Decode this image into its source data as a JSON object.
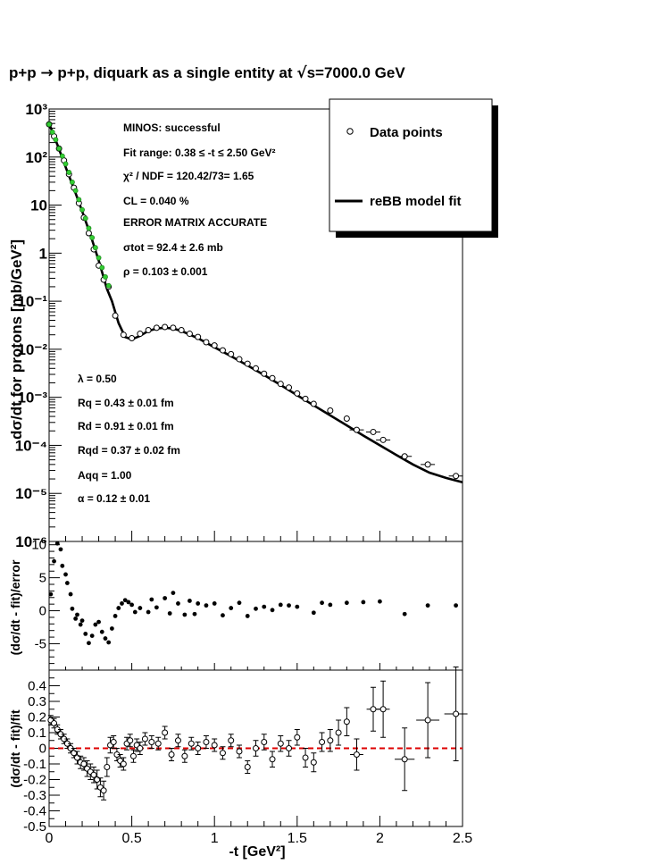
{
  "title": "p+p → p+p, diquark as a single entity at √s=7000.0 GeV",
  "title_parts": {
    "pre": "p+p ",
    "arrow": "→",
    "mid": " p+p, diquark as a single entity at ",
    "sqrt": "√",
    "post": "s=7000.0 GeV"
  },
  "colors": {
    "fit_points": "#33cc33",
    "zero_line": "#dd0000",
    "axes": "#000000"
  },
  "chart_data": [
    {
      "id": "main",
      "type": "scatter",
      "log_y": true,
      "xlim": [
        0,
        2.5
      ],
      "ylim": [
        1e-06,
        1000
      ],
      "ylabel": "dσ/dt for protons [mb/GeV²]",
      "y_tick_labels": [
        "10⁻⁶",
        "10⁻⁵",
        "10⁻⁴",
        "10⁻³",
        "10⁻²",
        "10⁻¹",
        "1",
        "10",
        "10²",
        "10³"
      ],
      "legend": {
        "position": "top-right",
        "entries": [
          "Data points",
          "reBB model fit"
        ]
      },
      "fit_info": [
        "MINOS: successful",
        "Fit range: 0.38 ≤ -t ≤ 2.50 GeV²",
        "χ² / NDF = 120.42/73= 1.65",
        "CL = 0.040 %",
        "ERROR MATRIX ACCURATE",
        "σtot = 92.4 ±  2.6 mb",
        "ρ = 0.103 ± 0.001"
      ],
      "params": [
        "λ = 0.50",
        "Rq = 0.43 ± 0.01 fm",
        "Rd = 0.91 ± 0.01 fm",
        "Rqd = 0.37 ± 0.02 fm",
        "Aqq = 1.00",
        "α = 0.12 ± 0.01"
      ],
      "fit_curve": [
        [
          0.0,
          500
        ],
        [
          0.05,
          180
        ],
        [
          0.1,
          62
        ],
        [
          0.15,
          22
        ],
        [
          0.2,
          7.5
        ],
        [
          0.25,
          2.4
        ],
        [
          0.3,
          0.7
        ],
        [
          0.35,
          0.18
        ],
        [
          0.38,
          0.1
        ],
        [
          0.42,
          0.035
        ],
        [
          0.46,
          0.018
        ],
        [
          0.5,
          0.016
        ],
        [
          0.55,
          0.019
        ],
        [
          0.6,
          0.024
        ],
        [
          0.65,
          0.027
        ],
        [
          0.7,
          0.028
        ],
        [
          0.75,
          0.027
        ],
        [
          0.8,
          0.024
        ],
        [
          0.9,
          0.017
        ],
        [
          1.0,
          0.011
        ],
        [
          1.1,
          0.0072
        ],
        [
          1.2,
          0.0046
        ],
        [
          1.3,
          0.0029
        ],
        [
          1.4,
          0.0018
        ],
        [
          1.5,
          0.0011
        ],
        [
          1.6,
          0.00068
        ],
        [
          1.7,
          0.00042
        ],
        [
          1.8,
          0.00026
        ],
        [
          1.9,
          0.00016
        ],
        [
          2.0,
          0.0001
        ],
        [
          2.1,
          6.3e-05
        ],
        [
          2.2,
          4e-05
        ],
        [
          2.3,
          2.7e-05
        ],
        [
          2.4,
          2.1e-05
        ],
        [
          2.5,
          1.7e-05
        ]
      ],
      "data_points": [
        [
          0.0,
          480
        ],
        [
          0.03,
          270
        ],
        [
          0.06,
          150
        ],
        [
          0.09,
          85
        ],
        [
          0.12,
          44
        ],
        [
          0.15,
          23
        ],
        [
          0.18,
          11
        ],
        [
          0.21,
          5.5
        ],
        [
          0.24,
          2.6
        ],
        [
          0.27,
          1.2
        ],
        [
          0.3,
          0.55
        ],
        [
          0.33,
          0.28
        ],
        [
          0.36,
          0.2
        ],
        [
          0.4,
          0.05
        ],
        [
          0.45,
          0.02
        ],
        [
          0.5,
          0.017
        ],
        [
          0.55,
          0.021
        ],
        [
          0.6,
          0.025
        ],
        [
          0.65,
          0.028
        ],
        [
          0.7,
          0.029
        ],
        [
          0.75,
          0.028
        ],
        [
          0.8,
          0.025
        ],
        [
          0.85,
          0.021
        ],
        [
          0.9,
          0.018
        ],
        [
          0.95,
          0.014
        ],
        [
          1.0,
          0.012
        ],
        [
          1.05,
          0.0095
        ],
        [
          1.1,
          0.0079
        ],
        [
          1.15,
          0.0062
        ],
        [
          1.2,
          0.005
        ],
        [
          1.25,
          0.004
        ],
        [
          1.3,
          0.0031
        ],
        [
          1.35,
          0.0025
        ],
        [
          1.4,
          0.0019
        ],
        [
          1.45,
          0.0016
        ],
        [
          1.5,
          0.0012
        ],
        [
          1.55,
          0.00093
        ],
        [
          1.6,
          0.00073
        ],
        [
          1.7,
          0.00053
        ],
        [
          1.8,
          0.00036
        ],
        [
          1.86,
          0.00021
        ],
        [
          1.96,
          0.00019
        ],
        [
          2.02,
          0.00013
        ],
        [
          2.15,
          5.9e-05
        ],
        [
          2.29,
          4e-05
        ],
        [
          2.46,
          2.3e-05
        ]
      ],
      "fit_range_points": [
        [
          0.0,
          480
        ],
        [
          0.02,
          330
        ],
        [
          0.04,
          230
        ],
        [
          0.06,
          150
        ],
        [
          0.08,
          105
        ],
        [
          0.1,
          72
        ],
        [
          0.12,
          48
        ],
        [
          0.14,
          30
        ],
        [
          0.16,
          20
        ],
        [
          0.18,
          13
        ],
        [
          0.2,
          8
        ],
        [
          0.22,
          5.3
        ],
        [
          0.24,
          3.3
        ],
        [
          0.26,
          2.1
        ],
        [
          0.28,
          1.3
        ],
        [
          0.3,
          0.8
        ],
        [
          0.32,
          0.5
        ],
        [
          0.34,
          0.32
        ],
        [
          0.36,
          0.21
        ]
      ]
    },
    {
      "id": "pull",
      "type": "scatter",
      "ylabel": "(dσ/dt - fit)/error",
      "ylim": [
        -9,
        10.5
      ],
      "y_ticks": [
        -5,
        0,
        5,
        10
      ],
      "x": [
        0.01,
        0.03,
        0.05,
        0.07,
        0.08,
        0.1,
        0.11,
        0.13,
        0.14,
        0.16,
        0.17,
        0.19,
        0.2,
        0.22,
        0.24,
        0.26,
        0.28,
        0.3,
        0.32,
        0.34,
        0.36,
        0.38,
        0.4,
        0.42,
        0.44,
        0.46,
        0.48,
        0.5,
        0.52,
        0.55,
        0.6,
        0.62,
        0.65,
        0.7,
        0.73,
        0.75,
        0.78,
        0.82,
        0.85,
        0.88,
        0.9,
        0.95,
        1.0,
        1.05,
        1.1,
        1.15,
        1.2,
        1.25,
        1.3,
        1.35,
        1.4,
        1.45,
        1.5,
        1.6,
        1.65,
        1.7,
        1.8,
        1.9,
        2.0,
        2.15,
        2.29,
        2.46
      ],
      "y": [
        2.5,
        7.5,
        10.2,
        9.3,
        6.8,
        5.5,
        4.2,
        2.5,
        0.3,
        -1.2,
        -0.6,
        -2.1,
        -1.5,
        -3.5,
        -4.9,
        -3.8,
        -2.1,
        -1.7,
        -3.2,
        -4.2,
        -4.8,
        -2.7,
        -0.8,
        0.4,
        1.1,
        1.6,
        1.3,
        0.9,
        -0.2,
        0.4,
        -0.2,
        1.7,
        0.5,
        1.9,
        -0.4,
        2.7,
        1.1,
        -0.6,
        1.5,
        -0.5,
        1.1,
        0.8,
        1.1,
        -0.7,
        0.4,
        1.2,
        -0.8,
        0.3,
        0.6,
        0.1,
        0.9,
        0.8,
        0.6,
        -0.3,
        1.2,
        0.9,
        1.2,
        1.3,
        1.4,
        -0.5,
        0.8,
        0.8
      ]
    },
    {
      "id": "relative",
      "type": "scatter",
      "ylabel": "(dσ/dt - fit)/fit",
      "xlabel": "-t [GeV²]",
      "xlim": [
        0,
        2.5
      ],
      "ylim": [
        -0.5,
        0.5
      ],
      "y_ticks": [
        -0.5,
        -0.4,
        -0.3,
        -0.2,
        -0.1,
        0,
        0.1,
        0.2,
        0.3,
        0.4
      ],
      "x_ticks": [
        0,
        0.5,
        1,
        1.5,
        2,
        2.5
      ],
      "zero_line": true,
      "x": [
        0.01,
        0.03,
        0.05,
        0.07,
        0.09,
        0.11,
        0.13,
        0.15,
        0.17,
        0.19,
        0.21,
        0.23,
        0.25,
        0.27,
        0.29,
        0.31,
        0.33,
        0.35,
        0.37,
        0.39,
        0.41,
        0.43,
        0.45,
        0.47,
        0.49,
        0.51,
        0.53,
        0.55,
        0.58,
        0.62,
        0.66,
        0.7,
        0.74,
        0.78,
        0.82,
        0.86,
        0.9,
        0.95,
        1.0,
        1.05,
        1.1,
        1.15,
        1.2,
        1.25,
        1.3,
        1.35,
        1.4,
        1.45,
        1.5,
        1.55,
        1.6,
        1.65,
        1.7,
        1.75,
        1.8,
        1.86,
        1.96,
        2.02,
        2.15,
        2.29,
        2.46
      ],
      "y": [
        0.18,
        0.16,
        0.12,
        0.09,
        0.06,
        0.03,
        0.0,
        -0.03,
        -0.06,
        -0.09,
        -0.1,
        -0.13,
        -0.15,
        -0.17,
        -0.2,
        -0.25,
        -0.27,
        -0.12,
        0.02,
        0.04,
        -0.04,
        -0.08,
        -0.1,
        0.03,
        0.05,
        -0.05,
        0.02,
        0.0,
        0.06,
        0.04,
        0.03,
        0.1,
        -0.04,
        0.05,
        -0.05,
        0.03,
        0.0,
        0.04,
        0.02,
        -0.03,
        0.05,
        -0.02,
        -0.12,
        0.0,
        0.04,
        -0.07,
        0.03,
        0.0,
        0.07,
        -0.06,
        -0.09,
        0.04,
        0.05,
        0.1,
        0.17,
        -0.04,
        0.25,
        0.25,
        -0.07,
        0.18,
        0.22
      ],
      "err": [
        0.03,
        0.03,
        0.03,
        0.03,
        0.03,
        0.03,
        0.03,
        0.03,
        0.04,
        0.04,
        0.04,
        0.05,
        0.05,
        0.05,
        0.06,
        0.06,
        0.06,
        0.06,
        0.05,
        0.04,
        0.04,
        0.04,
        0.04,
        0.04,
        0.04,
        0.04,
        0.04,
        0.04,
        0.04,
        0.04,
        0.04,
        0.04,
        0.04,
        0.04,
        0.04,
        0.04,
        0.04,
        0.04,
        0.04,
        0.04,
        0.04,
        0.04,
        0.04,
        0.05,
        0.05,
        0.05,
        0.05,
        0.05,
        0.05,
        0.06,
        0.06,
        0.06,
        0.07,
        0.08,
        0.09,
        0.1,
        0.14,
        0.18,
        0.2,
        0.24,
        0.3
      ],
      "xerr": [
        0,
        0,
        0,
        0,
        0,
        0,
        0,
        0,
        0,
        0,
        0,
        0,
        0,
        0,
        0,
        0,
        0,
        0,
        0,
        0,
        0,
        0,
        0,
        0,
        0,
        0,
        0,
        0,
        0,
        0,
        0,
        0,
        0,
        0,
        0,
        0,
        0,
        0,
        0,
        0,
        0,
        0,
        0,
        0,
        0,
        0,
        0,
        0,
        0,
        0,
        0,
        0,
        0,
        0,
        0,
        0.04,
        0.04,
        0.04,
        0.06,
        0.07,
        0.07
      ]
    }
  ]
}
